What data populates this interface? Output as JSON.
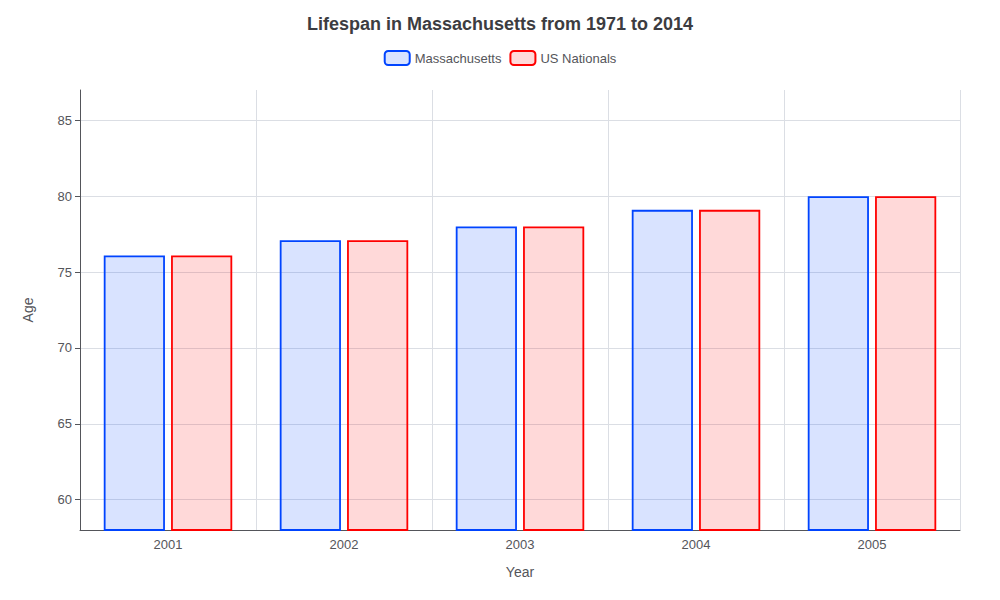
{
  "chart_data": {
    "type": "bar",
    "title": "Lifespan in Massachusetts from 1971 to 2014",
    "x_label": "Year",
    "y_label": "Age",
    "categories": [
      "2001",
      "2002",
      "2003",
      "2004",
      "2005"
    ],
    "series": [
      {
        "name": "Massachusetts",
        "color": "#0044ff",
        "values": [
          76.1,
          77.1,
          78.0,
          79.1,
          80.0
        ]
      },
      {
        "name": "US Nationals",
        "color": "#ff0000",
        "values": [
          76.1,
          77.1,
          78.0,
          79.1,
          80.0
        ]
      }
    ],
    "ylim": [
      58,
      87
    ],
    "yticks": [
      60,
      65,
      70,
      75,
      80,
      85
    ],
    "grid": true,
    "legend": "upper center"
  }
}
